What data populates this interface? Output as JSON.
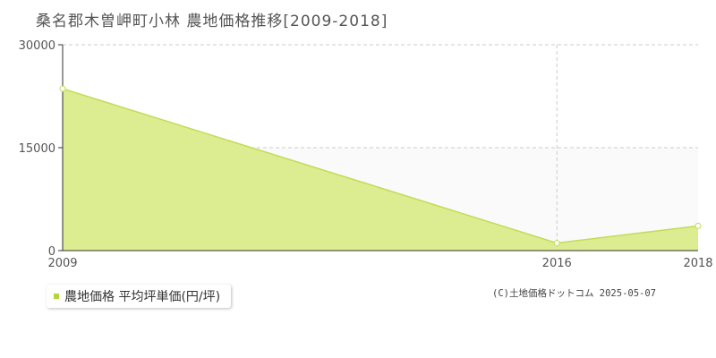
{
  "title": "桑名郡木曽岬町小林 農地価格推移[2009-2018]",
  "legend": {
    "label": "農地価格 平均坪単価(円/坪)"
  },
  "credit": "(C)土地価格ドットコム 2025-05-07",
  "colors": {
    "area_fill": "#dcec91",
    "line": "#c2dc58",
    "marker_fill": "#ffffff",
    "marker_stroke": "#c2dc58",
    "legend_swatch": "#b5d63a",
    "grid": "#cccccc",
    "band": "#fafafa"
  },
  "chart_data": {
    "type": "area",
    "x": [
      2009,
      2016,
      2018
    ],
    "series": [
      {
        "name": "農地価格 平均坪単価(円/坪)",
        "values": [
          23600,
          1100,
          3600
        ]
      }
    ],
    "xticks": [
      "2009",
      "2016",
      "2018"
    ],
    "yticks": [
      "0",
      "15000",
      "30000"
    ],
    "xlim": [
      2009,
      2018
    ],
    "ylim": [
      0,
      30000
    ],
    "grid": true,
    "legend_position": "bottom-left"
  }
}
